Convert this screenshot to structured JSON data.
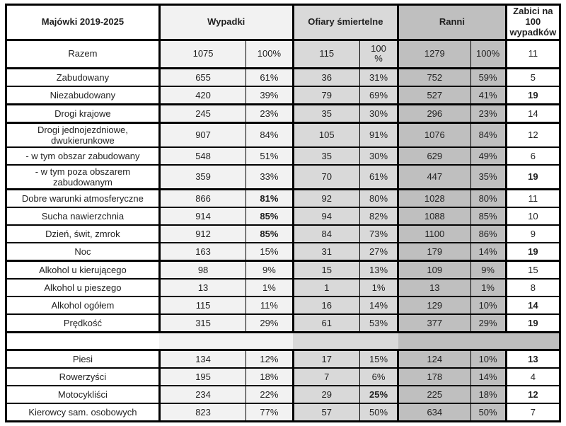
{
  "colors": {
    "wypadki_bg": "#f2f2f2",
    "ofiary_bg": "#d9d9d9",
    "ranni_bg": "#bfbfbf",
    "border": "#000000",
    "text": "#1f1f1f"
  },
  "table": {
    "header": {
      "title": "Majówki 2019-2025",
      "wypadki": "Wypadki",
      "ofiary": "Ofiary śmiertelne",
      "ranni": "Ranni",
      "zabici": "Zabici na 100 wypadków"
    },
    "rows": [
      {
        "label": "Razem",
        "wypadki": "1075",
        "wypadki_pct": "100%",
        "ofiary": "115",
        "ofiary_pct": "100\n%",
        "ranni": "1279",
        "ranni_pct": "100%",
        "zabici": "11",
        "bold": [],
        "group_end": true,
        "tall": true
      },
      {
        "label": "Zabudowany",
        "wypadki": "655",
        "wypadki_pct": "61%",
        "ofiary": "36",
        "ofiary_pct": "31%",
        "ranni": "752",
        "ranni_pct": "59%",
        "zabici": "5",
        "bold": [],
        "group_end": false
      },
      {
        "label": "Niezabudowany",
        "wypadki": "420",
        "wypadki_pct": "39%",
        "ofiary": "79",
        "ofiary_pct": "69%",
        "ranni": "527",
        "ranni_pct": "41%",
        "zabici": "19",
        "bold": [
          "zabici"
        ],
        "group_end": true
      },
      {
        "label": "Drogi krajowe",
        "wypadki": "245",
        "wypadki_pct": "23%",
        "ofiary": "35",
        "ofiary_pct": "30%",
        "ranni": "296",
        "ranni_pct": "23%",
        "zabici": "14",
        "bold": [],
        "group_end": true
      },
      {
        "label": "Drogi jednojezdniowe, dwukierunkowe",
        "wypadki": "907",
        "wypadki_pct": "84%",
        "ofiary": "105",
        "ofiary_pct": "91%",
        "ranni": "1076",
        "ranni_pct": "84%",
        "zabici": "12",
        "bold": [],
        "group_end": false
      },
      {
        "label": "- w tym obszar zabudowany",
        "wypadki": "548",
        "wypadki_pct": "51%",
        "ofiary": "35",
        "ofiary_pct": "30%",
        "ranni": "629",
        "ranni_pct": "49%",
        "zabici": "6",
        "bold": [],
        "group_end": false
      },
      {
        "label": "- w tym poza obszarem zabudowanym",
        "wypadki": "359",
        "wypadki_pct": "33%",
        "ofiary": "70",
        "ofiary_pct": "61%",
        "ranni": "447",
        "ranni_pct": "35%",
        "zabici": "19",
        "bold": [
          "zabici"
        ],
        "group_end": true
      },
      {
        "label": "Dobre warunki atmosferyczne",
        "wypadki": "866",
        "wypadki_pct": "81%",
        "ofiary": "92",
        "ofiary_pct": "80%",
        "ranni": "1028",
        "ranni_pct": "80%",
        "zabici": "11",
        "bold": [
          "wypadki_pct"
        ],
        "group_end": false
      },
      {
        "label": "Sucha nawierzchnia",
        "wypadki": "914",
        "wypadki_pct": "85%",
        "ofiary": "94",
        "ofiary_pct": "82%",
        "ranni": "1088",
        "ranni_pct": "85%",
        "zabici": "10",
        "bold": [
          "wypadki_pct"
        ],
        "group_end": false
      },
      {
        "label": "Dzień, świt, zmrok",
        "wypadki": "912",
        "wypadki_pct": "85%",
        "ofiary": "84",
        "ofiary_pct": "73%",
        "ranni": "1100",
        "ranni_pct": "86%",
        "zabici": "9",
        "bold": [
          "wypadki_pct"
        ],
        "group_end": false
      },
      {
        "label": "Noc",
        "wypadki": "163",
        "wypadki_pct": "15%",
        "ofiary": "31",
        "ofiary_pct": "27%",
        "ranni": "179",
        "ranni_pct": "14%",
        "zabici": "19",
        "bold": [
          "zabici"
        ],
        "group_end": true
      },
      {
        "label": "Alkohol u kierującego",
        "wypadki": "98",
        "wypadki_pct": "9%",
        "ofiary": "15",
        "ofiary_pct": "13%",
        "ranni": "109",
        "ranni_pct": "9%",
        "zabici": "15",
        "bold": [],
        "group_end": false
      },
      {
        "label": "Alkohol u pieszego",
        "wypadki": "13",
        "wypadki_pct": "1%",
        "ofiary": "1",
        "ofiary_pct": "1%",
        "ranni": "13",
        "ranni_pct": "1%",
        "zabici": "8",
        "bold": [],
        "group_end": false
      },
      {
        "label": "Alkohol ogółem",
        "wypadki": "115",
        "wypadki_pct": "11%",
        "ofiary": "16",
        "ofiary_pct": "14%",
        "ranni": "129",
        "ranni_pct": "10%",
        "zabici": "14",
        "bold": [
          "zabici"
        ],
        "group_end": false
      },
      {
        "label": "Prędkość",
        "wypadki": "315",
        "wypadki_pct": "29%",
        "ofiary": "61",
        "ofiary_pct": "53%",
        "ranni": "377",
        "ranni_pct": "29%",
        "zabici": "19",
        "bold": [
          "zabici"
        ],
        "group_end": true
      },
      {
        "type": "separator",
        "group_end": true
      },
      {
        "label": "Piesi",
        "wypadki": "134",
        "wypadki_pct": "12%",
        "ofiary": "17",
        "ofiary_pct": "15%",
        "ranni": "124",
        "ranni_pct": "10%",
        "zabici": "13",
        "bold": [
          "zabici"
        ],
        "group_end": false
      },
      {
        "label": "Rowerzyści",
        "wypadki": "195",
        "wypadki_pct": "18%",
        "ofiary": "7",
        "ofiary_pct": "6%",
        "ranni": "178",
        "ranni_pct": "14%",
        "zabici": "4",
        "bold": [],
        "group_end": false
      },
      {
        "label": "Motocykliści",
        "wypadki": "234",
        "wypadki_pct": "22%",
        "ofiary": "29",
        "ofiary_pct": "25%",
        "ranni": "225",
        "ranni_pct": "18%",
        "zabici": "12",
        "bold": [
          "ofiary_pct",
          "zabici"
        ],
        "group_end": false
      },
      {
        "label": "Kierowcy sam. osobowych",
        "wypadki": "823",
        "wypadki_pct": "77%",
        "ofiary": "57",
        "ofiary_pct": "50%",
        "ranni": "634",
        "ranni_pct": "50%",
        "zabici": "7",
        "bold": [],
        "group_end": false
      }
    ]
  }
}
